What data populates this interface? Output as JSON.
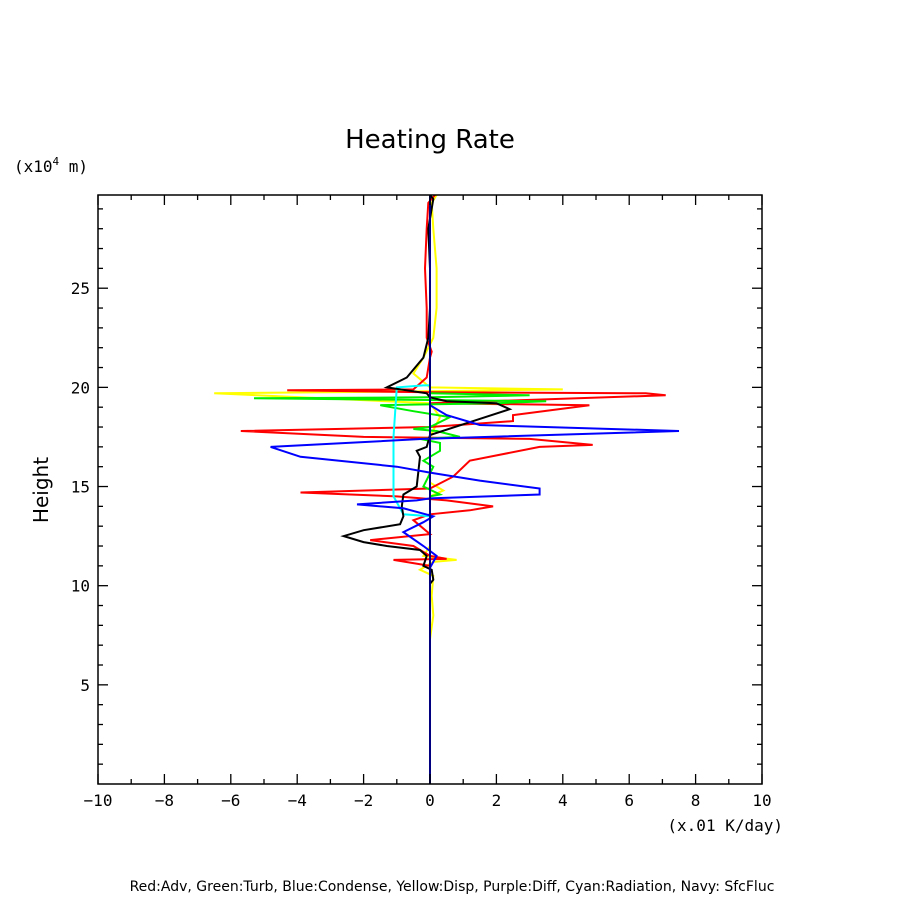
{
  "chart_data": {
    "type": "line",
    "title": "Heating Rate",
    "ylabel": "Height",
    "yunit_prefix": "(x10",
    "yunit_exp": "4",
    "yunit_suffix": " m)",
    "xunit": "(x.01 K/day)",
    "xlim": [
      -10,
      10
    ],
    "ylim": [
      0,
      29.7
    ],
    "xticks": [
      -10,
      -8,
      -6,
      -4,
      -2,
      0,
      2,
      4,
      6,
      8,
      10
    ],
    "xtick_labels": [
      "−10",
      "−8",
      "−6",
      "−4",
      "−2",
      "0",
      "2",
      "4",
      "6",
      "8",
      "10"
    ],
    "yticks": [
      5,
      10,
      15,
      20,
      25
    ],
    "ytick_labels": [
      "5",
      "10",
      "15",
      "20",
      "25"
    ],
    "legend_text": "Red:Adv, Green:Turb, Blue:Condense, Yellow:Disp, Purple:Diff, Cyan:Radiation, Navy: SfcFluc",
    "series": [
      {
        "key": "yellow",
        "color": "#ffff00",
        "points": [
          [
            0,
            7.3
          ],
          [
            0.1,
            8.5
          ],
          [
            0.05,
            9.5
          ],
          [
            0.1,
            10.5
          ],
          [
            -0.3,
            10.8
          ],
          [
            0.1,
            11.2
          ],
          [
            0.8,
            11.3
          ],
          [
            -0.2,
            11.5
          ],
          [
            0,
            12
          ],
          [
            0,
            14.5
          ],
          [
            0.4,
            14.8
          ],
          [
            0,
            15.2
          ],
          [
            0,
            17.5
          ],
          [
            0.3,
            18.5
          ],
          [
            0,
            19.2
          ],
          [
            -6.5,
            19.7
          ],
          [
            0,
            19.8
          ],
          [
            4,
            19.9
          ],
          [
            0,
            20
          ],
          [
            -0.5,
            20.7
          ],
          [
            -0.2,
            21.5
          ],
          [
            0.1,
            22.5
          ],
          [
            0.2,
            24
          ],
          [
            0.2,
            26
          ],
          [
            0.1,
            28
          ],
          [
            0.05,
            29.3
          ],
          [
            0.2,
            29.7
          ]
        ]
      },
      {
        "key": "red",
        "color": "#ff0000",
        "points": [
          [
            0,
            11
          ],
          [
            -1.1,
            11.3
          ],
          [
            0.5,
            11.35
          ],
          [
            0,
            11.5
          ],
          [
            -0.5,
            12
          ],
          [
            -1.8,
            12.3
          ],
          [
            0,
            12.6
          ],
          [
            -0.5,
            13.3
          ],
          [
            0,
            13.6
          ],
          [
            1.2,
            13.8
          ],
          [
            1.9,
            14
          ],
          [
            0.5,
            14.3
          ],
          [
            -1,
            14.5
          ],
          [
            -3.9,
            14.7
          ],
          [
            0,
            14.9
          ],
          [
            0.7,
            15.5
          ],
          [
            1.2,
            16.3
          ],
          [
            3.3,
            17
          ],
          [
            4.9,
            17.1
          ],
          [
            3,
            17.4
          ],
          [
            -2,
            17.5
          ],
          [
            -5.7,
            17.8
          ],
          [
            0,
            18
          ],
          [
            2.5,
            18.3
          ],
          [
            2.5,
            18.6
          ],
          [
            4.8,
            19.1
          ],
          [
            0,
            19.2
          ],
          [
            7.1,
            19.6
          ],
          [
            6.5,
            19.7
          ],
          [
            0,
            19.75
          ],
          [
            -4.3,
            19.85
          ],
          [
            -0.5,
            19.9
          ],
          [
            -0.1,
            20.5
          ],
          [
            0,
            21.5
          ],
          [
            0.05,
            21.8
          ],
          [
            -0.1,
            22.5
          ],
          [
            -0.1,
            24
          ],
          [
            -0.15,
            26
          ],
          [
            -0.1,
            28
          ],
          [
            -0.05,
            29.3
          ],
          [
            0.15,
            29.7
          ]
        ]
      },
      {
        "key": "green",
        "color": "#00ee00",
        "points": [
          [
            0,
            14.5
          ],
          [
            0.3,
            14.6
          ],
          [
            -0.2,
            15
          ],
          [
            0.1,
            16
          ],
          [
            -0.2,
            16.3
          ],
          [
            0.3,
            16.8
          ],
          [
            0.3,
            17.2
          ],
          [
            -0.3,
            17.4
          ],
          [
            0.9,
            17.5
          ],
          [
            0.2,
            17.8
          ],
          [
            -0.5,
            17.9
          ],
          [
            0,
            18
          ],
          [
            0.6,
            18.5
          ],
          [
            -0.5,
            18.8
          ],
          [
            -1.5,
            19.1
          ],
          [
            2,
            19.2
          ],
          [
            3.5,
            19.3
          ],
          [
            -5.3,
            19.45
          ],
          [
            0,
            19.5
          ],
          [
            3,
            19.6
          ],
          [
            0,
            19.7
          ]
        ]
      },
      {
        "key": "cyan",
        "color": "#00ffff",
        "points": [
          [
            0,
            13.5
          ],
          [
            -0.8,
            13.6
          ],
          [
            -1.1,
            14.5
          ],
          [
            -1.1,
            17.5
          ],
          [
            -1,
            20
          ],
          [
            -0.2,
            20.1
          ],
          [
            0,
            20.1
          ]
        ]
      },
      {
        "key": "black",
        "color": "#000000",
        "points": [
          [
            0,
            10.1
          ],
          [
            0.1,
            10.3
          ],
          [
            0.05,
            10.8
          ],
          [
            -0.2,
            11
          ],
          [
            -0.1,
            11.5
          ],
          [
            -0.3,
            11.8
          ],
          [
            -1.3,
            12
          ],
          [
            -2,
            12.2
          ],
          [
            -2.6,
            12.5
          ],
          [
            -2,
            12.8
          ],
          [
            -0.9,
            13.1
          ],
          [
            -0.8,
            13.5
          ],
          [
            -0.85,
            14
          ],
          [
            -0.8,
            14.6
          ],
          [
            -0.4,
            15
          ],
          [
            -0.3,
            16.5
          ],
          [
            -0.4,
            16.8
          ],
          [
            -0.1,
            17
          ],
          [
            0,
            17.6
          ],
          [
            1.3,
            18.3
          ],
          [
            2.4,
            18.9
          ],
          [
            2,
            19.2
          ],
          [
            0.5,
            19.3
          ],
          [
            0,
            19.5
          ],
          [
            -0.1,
            19.7
          ],
          [
            -1.3,
            20
          ],
          [
            -0.7,
            20.5
          ],
          [
            -0.2,
            21.5
          ],
          [
            -0.05,
            22.5
          ],
          [
            0,
            24
          ],
          [
            0,
            26
          ],
          [
            -0.05,
            28
          ],
          [
            0.1,
            29.5
          ],
          [
            0,
            29.7
          ]
        ]
      },
      {
        "key": "blue",
        "color": "#0000ff",
        "points": [
          [
            0,
            10.9
          ],
          [
            0.2,
            11.5
          ],
          [
            -0.2,
            12
          ],
          [
            -0.8,
            12.7
          ],
          [
            -0.2,
            13.2
          ],
          [
            0.1,
            13.5
          ],
          [
            -0.8,
            13.9
          ],
          [
            -2.2,
            14.1
          ],
          [
            -0.4,
            14.3
          ],
          [
            0,
            14.4
          ],
          [
            3.3,
            14.6
          ],
          [
            3.3,
            14.9
          ],
          [
            1.5,
            15.3
          ],
          [
            0,
            15.7
          ],
          [
            -1,
            16
          ],
          [
            -3.9,
            16.5
          ],
          [
            -4.8,
            17
          ],
          [
            -0.2,
            17.4
          ],
          [
            7.5,
            17.8
          ],
          [
            1.5,
            18.1
          ],
          [
            0.5,
            18.6
          ],
          [
            0,
            19.1
          ],
          [
            0,
            29.7
          ]
        ]
      },
      {
        "key": "navy",
        "color": "#000080",
        "points": [
          [
            0,
            0
          ],
          [
            0,
            29.7
          ]
        ]
      }
    ]
  }
}
